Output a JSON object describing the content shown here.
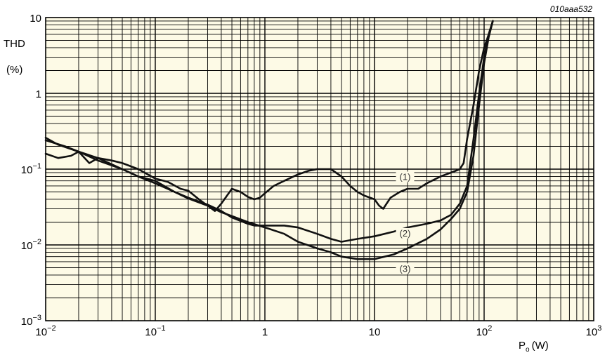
{
  "chart_data": {
    "type": "line",
    "figure_code": "010aaa532",
    "xscale": "log",
    "yscale": "log",
    "xlim": [
      0.01,
      1000
    ],
    "ylim": [
      0.001,
      10
    ],
    "grid": true,
    "ylabel_lines": [
      "THD",
      "(%)"
    ],
    "xlabel": {
      "symbol": "P",
      "subscript": "o",
      "unit": "(W)"
    },
    "x_ticks": [
      {
        "value": 0.01,
        "base": "10",
        "exp": "−2"
      },
      {
        "value": 0.1,
        "base": "10",
        "exp": "−1"
      },
      {
        "value": 1,
        "base": "1",
        "exp": ""
      },
      {
        "value": 10,
        "base": "10",
        "exp": ""
      },
      {
        "value": 100,
        "base": "10",
        "exp": "2"
      },
      {
        "value": 1000,
        "base": "10",
        "exp": "3"
      }
    ],
    "y_ticks": [
      {
        "value": 10,
        "base": "10",
        "exp": ""
      },
      {
        "value": 1,
        "base": "1",
        "exp": ""
      },
      {
        "value": 0.1,
        "base": "10",
        "exp": "−1"
      },
      {
        "value": 0.01,
        "base": "10",
        "exp": "−2"
      },
      {
        "value": 0.001,
        "base": "10",
        "exp": "−3"
      }
    ],
    "series": [
      {
        "name": "(1)",
        "label_at": {
          "x": 19,
          "y": 0.075
        },
        "x": [
          0.01,
          0.013,
          0.017,
          0.02,
          0.025,
          0.03,
          0.04,
          0.05,
          0.07,
          0.1,
          0.13,
          0.17,
          0.2,
          0.25,
          0.3,
          0.35,
          0.4,
          0.5,
          0.6,
          0.7,
          0.8,
          0.9,
          1.0,
          1.2,
          1.5,
          2,
          2.5,
          3,
          4,
          5,
          6,
          7,
          8,
          10,
          11,
          12,
          14,
          17,
          20,
          25,
          30,
          40,
          50,
          55,
          60,
          65,
          70,
          80,
          90,
          100,
          110,
          120
        ],
        "y": [
          0.16,
          0.14,
          0.15,
          0.17,
          0.12,
          0.14,
          0.13,
          0.12,
          0.1,
          0.075,
          0.068,
          0.055,
          0.052,
          0.04,
          0.033,
          0.028,
          0.035,
          0.055,
          0.05,
          0.043,
          0.04,
          0.042,
          0.048,
          0.06,
          0.07,
          0.085,
          0.095,
          0.1,
          0.1,
          0.08,
          0.06,
          0.05,
          0.045,
          0.04,
          0.033,
          0.03,
          0.042,
          0.05,
          0.055,
          0.055,
          0.065,
          0.08,
          0.09,
          0.095,
          0.1,
          0.12,
          0.25,
          0.7,
          2,
          4,
          6,
          9
        ]
      },
      {
        "name": "(2)",
        "label_at": {
          "x": 19,
          "y": 0.0135
        },
        "x": [
          0.01,
          0.015,
          0.02,
          0.03,
          0.05,
          0.07,
          0.1,
          0.15,
          0.2,
          0.3,
          0.4,
          0.5,
          0.7,
          0.8,
          1.0,
          1.5,
          2,
          3,
          4,
          5,
          7,
          10,
          15,
          20,
          30,
          40,
          50,
          60,
          70,
          80,
          90,
          100,
          110,
          120
        ],
        "y": [
          0.24,
          0.2,
          0.17,
          0.14,
          0.1,
          0.08,
          0.07,
          0.05,
          0.042,
          0.034,
          0.028,
          0.023,
          0.019,
          0.018,
          0.018,
          0.018,
          0.017,
          0.014,
          0.012,
          0.011,
          0.012,
          0.013,
          0.015,
          0.017,
          0.019,
          0.021,
          0.025,
          0.035,
          0.06,
          0.25,
          1.0,
          3.0,
          6.0,
          9.0
        ]
      },
      {
        "name": "(3)",
        "label_at": {
          "x": 19,
          "y": 0.0046
        },
        "x": [
          0.01,
          0.013,
          0.02,
          0.03,
          0.05,
          0.07,
          0.1,
          0.15,
          0.2,
          0.3,
          0.4,
          0.5,
          0.7,
          1.0,
          1.5,
          2,
          3,
          4,
          5,
          7,
          10,
          15,
          20,
          30,
          40,
          50,
          60,
          70,
          80,
          90,
          100,
          110,
          120
        ],
        "y": [
          0.26,
          0.21,
          0.17,
          0.13,
          0.1,
          0.08,
          0.065,
          0.05,
          0.041,
          0.033,
          0.027,
          0.024,
          0.02,
          0.017,
          0.014,
          0.011,
          0.009,
          0.008,
          0.007,
          0.0065,
          0.0065,
          0.0075,
          0.009,
          0.012,
          0.016,
          0.022,
          0.03,
          0.05,
          0.15,
          0.7,
          2.5,
          5.5,
          9.0
        ]
      }
    ]
  }
}
